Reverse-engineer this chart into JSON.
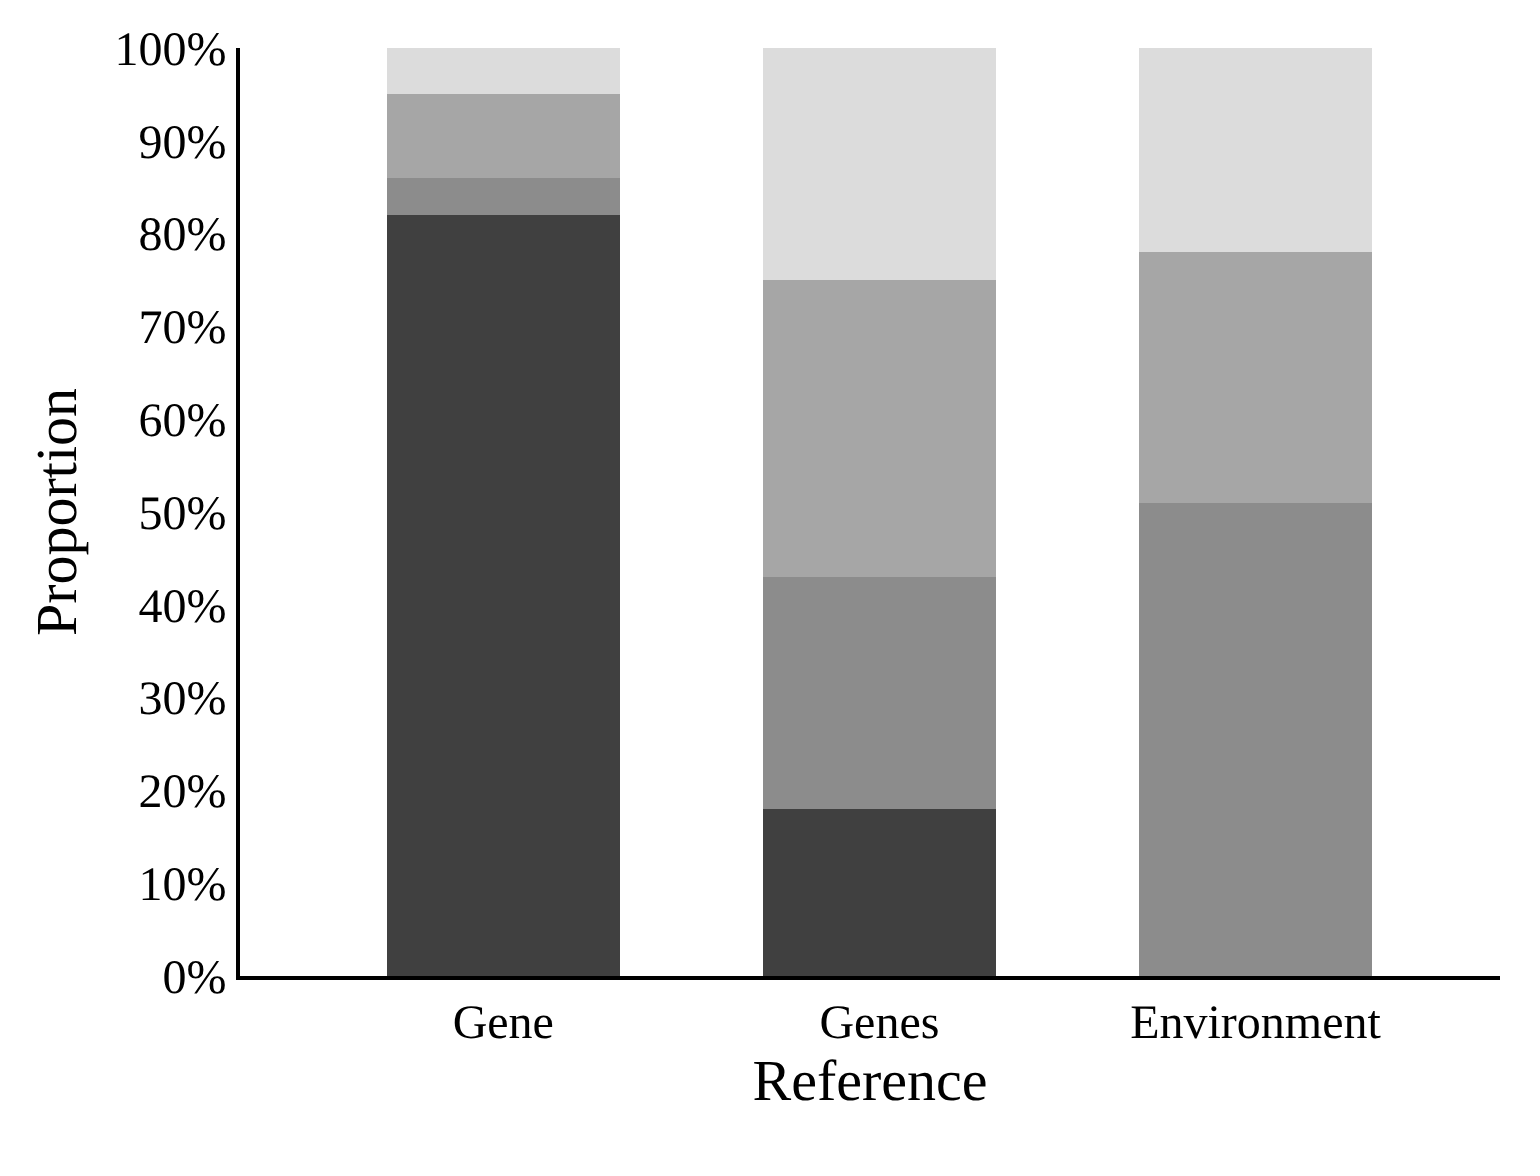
{
  "chart_data": {
    "type": "bar",
    "stacked": true,
    "xlabel": "Reference",
    "ylabel": "Proportion",
    "categories": [
      "Gene",
      "Genes",
      "Environment"
    ],
    "series": [
      {
        "color": "#404040",
        "values": [
          82,
          18,
          0
        ]
      },
      {
        "color": "#8c8c8c",
        "values": [
          4,
          25,
          51
        ]
      },
      {
        "color": "#a6a6a6",
        "values": [
          9,
          32,
          27
        ]
      },
      {
        "color": "#dcdcdc",
        "values": [
          5,
          25,
          22
        ]
      }
    ],
    "ylim": [
      0,
      100
    ],
    "yticks": [
      {
        "value": 0,
        "label": "0%"
      },
      {
        "value": 10,
        "label": "10%"
      },
      {
        "value": 20,
        "label": "20%"
      },
      {
        "value": 30,
        "label": "30%"
      },
      {
        "value": 40,
        "label": "40%"
      },
      {
        "value": 50,
        "label": "50%"
      },
      {
        "value": 60,
        "label": "60%"
      },
      {
        "value": 70,
        "label": "70%"
      },
      {
        "value": 80,
        "label": "80%"
      },
      {
        "value": 90,
        "label": "90%"
      },
      {
        "value": 100,
        "label": "100%"
      }
    ],
    "grid": false,
    "legend": false
  }
}
